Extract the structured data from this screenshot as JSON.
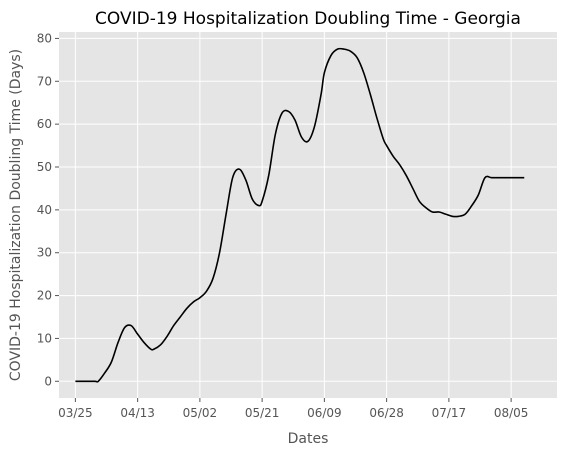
{
  "chart_data": {
    "type": "line",
    "title": "COVID-19 Hospitalization Doubling Time - Georgia",
    "xlabel": "Dates",
    "ylabel": "COVID-19 Hospitalization Doubling Time (Days)",
    "x_tick_labels": [
      "03/25",
      "04/13",
      "05/02",
      "05/21",
      "06/09",
      "06/28",
      "07/17",
      "08/05"
    ],
    "y_ticks": [
      0,
      10,
      20,
      30,
      40,
      50,
      60,
      70,
      80
    ],
    "ylim": [
      -3.9,
      81.5
    ],
    "xlim": [
      "2020-03-20",
      "2020-08-19"
    ],
    "grid": true,
    "background": "#e5e5e5",
    "line_color": "#000000",
    "series": [
      {
        "x": [
          "2020-03-25",
          "2020-03-28",
          "2020-03-31",
          "2020-04-01",
          "2020-04-03",
          "2020-04-05",
          "2020-04-07",
          "2020-04-09",
          "2020-04-11",
          "2020-04-13",
          "2020-04-15",
          "2020-04-17",
          "2020-04-18",
          "2020-04-20",
          "2020-04-22",
          "2020-04-24",
          "2020-04-26",
          "2020-04-28",
          "2020-04-30",
          "2020-05-02",
          "2020-05-04",
          "2020-05-06",
          "2020-05-08",
          "2020-05-10",
          "2020-05-12",
          "2020-05-14",
          "2020-05-16",
          "2020-05-18",
          "2020-05-20",
          "2020-05-21",
          "2020-05-23",
          "2020-05-25",
          "2020-05-27",
          "2020-05-29",
          "2020-05-31",
          "2020-06-02",
          "2020-06-04",
          "2020-06-06",
          "2020-06-08",
          "2020-06-09",
          "2020-06-11",
          "2020-06-13",
          "2020-06-15",
          "2020-06-17",
          "2020-06-19",
          "2020-06-21",
          "2020-06-23",
          "2020-06-25",
          "2020-06-27",
          "2020-06-28",
          "2020-06-30",
          "2020-07-02",
          "2020-07-04",
          "2020-07-06",
          "2020-07-08",
          "2020-07-10",
          "2020-07-12",
          "2020-07-14",
          "2020-07-16",
          "2020-07-18",
          "2020-07-20",
          "2020-07-22",
          "2020-07-24",
          "2020-07-26",
          "2020-07-28",
          "2020-07-30",
          "2020-08-01",
          "2020-08-03",
          "2020-08-05",
          "2020-08-07",
          "2020-08-09",
          "2020-08-11",
          "2020-08-13"
        ],
        "y": [
          0,
          0,
          0,
          0,
          2,
          4.5,
          9,
          12.5,
          13,
          11,
          9,
          7.5,
          7.5,
          8.5,
          10.5,
          13,
          15,
          17,
          18.5,
          19.5,
          21,
          24,
          30,
          39,
          47.5,
          49.5,
          47,
          42.5,
          41,
          42,
          48,
          57.5,
          62.5,
          63,
          61,
          57,
          56,
          59.5,
          67,
          72,
          76,
          77.5,
          77.5,
          77,
          75.5,
          72,
          67,
          61.5,
          56.5,
          55,
          52.5,
          50.5,
          48,
          45,
          42,
          40.5,
          39.5,
          39.5,
          39,
          38.5,
          38.5,
          39,
          41,
          43.5,
          47.5,
          47.5,
          47.5,
          47.5,
          47.5,
          47.5,
          47.5,
          47.5,
          47.5
        ]
      }
    ]
  }
}
